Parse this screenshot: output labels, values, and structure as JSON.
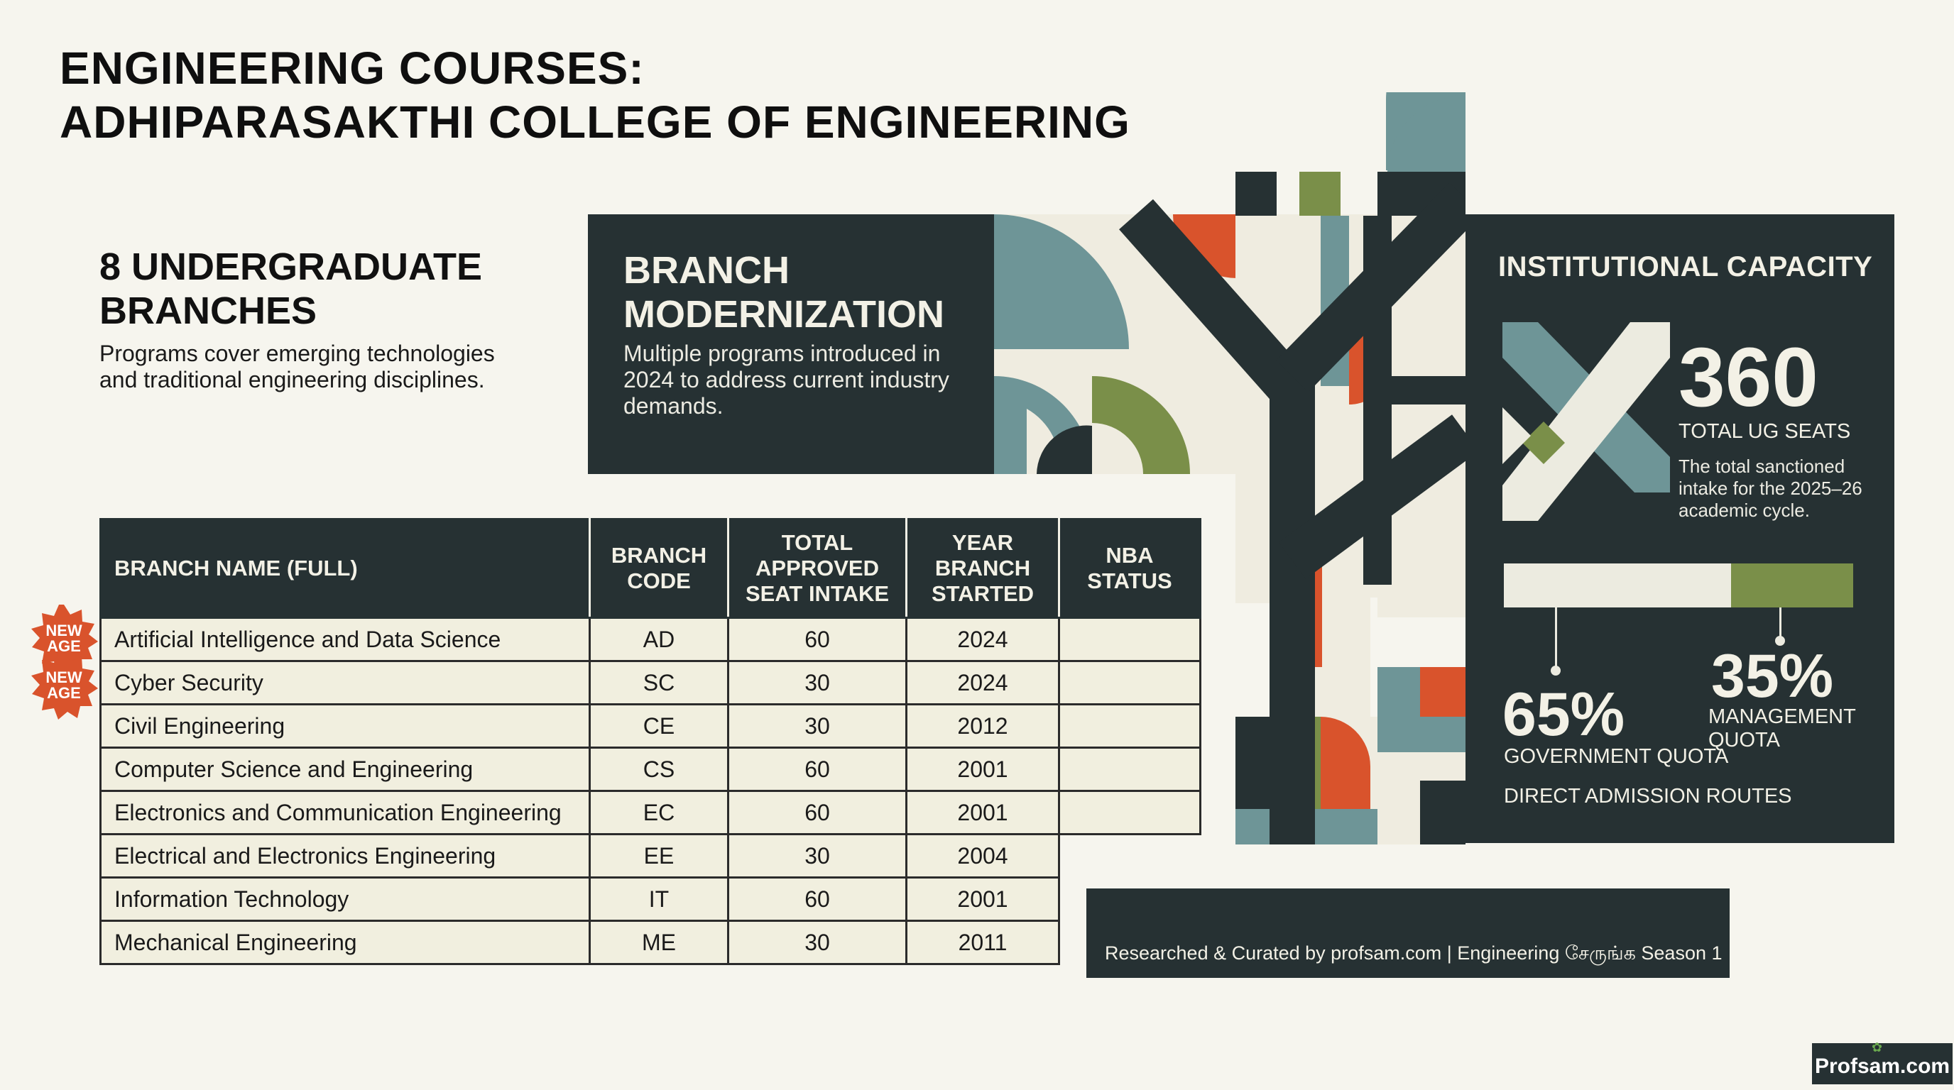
{
  "header": {
    "title_line1": "ENGINEERING COURSES:",
    "title_line2": "ADHIPARASAKTHI COLLEGE OF ENGINEERING"
  },
  "branches_summary": {
    "heading": "8 UNDERGRADUATE BRANCHES",
    "description": "Programs cover emerging technologies and traditional engineering disciplines."
  },
  "modernization": {
    "heading": "BRANCH MODERNIZATION",
    "description": "Multiple programs introduced in 2024 to address current industry demands."
  },
  "capacity": {
    "heading": "INSTITUTIONAL CAPACITY",
    "total_seats": "360",
    "total_label": "TOTAL UG SEATS",
    "total_description": "The total sanctioned intake for the 2025–26 academic cycle.",
    "government_pct": "65%",
    "government_label": "GOVERNMENT QUOTA",
    "government_fraction": 0.65,
    "management_pct": "35%",
    "management_label": "MANAGEMENT QUOTA",
    "routes_label": "DIRECT ADMISSION ROUTES",
    "colors": {
      "panel": "#263133",
      "gov_bar": "#ecebe0",
      "mgmt_bar": "#7a8f49"
    }
  },
  "table": {
    "headers": {
      "name": "BRANCH NAME (FULL)",
      "code": "BRANCH CODE",
      "intake": "TOTAL APPROVED SEAT INTAKE",
      "year": "YEAR BRANCH STARTED",
      "nba": "NBA STATUS"
    },
    "rows": [
      {
        "name": "Artificial Intelligence and Data Science",
        "code": "AD",
        "intake": "60",
        "year": "2024",
        "badge": "NEW AGE"
      },
      {
        "name": "Cyber Security",
        "code": "SC",
        "intake": "30",
        "year": "2024",
        "badge": "NEW AGE"
      },
      {
        "name": "Civil Engineering",
        "code": "CE",
        "intake": "30",
        "year": "2012"
      },
      {
        "name": "Computer Science and Engineering",
        "code": "CS",
        "intake": "60",
        "year": "2001"
      },
      {
        "name": "Electronics and Communication Engineering",
        "code": "EC",
        "intake": "60",
        "year": "2001"
      },
      {
        "name": "Electrical and Electronics Engineering",
        "code": "EE",
        "intake": "30",
        "year": "2004"
      },
      {
        "name": "Information Technology",
        "code": "IT",
        "intake": "60",
        "year": "2001"
      },
      {
        "name": "Mechanical Engineering",
        "code": "ME",
        "intake": "30",
        "year": "2011"
      }
    ]
  },
  "badges": {
    "new_age_line1": "NEW",
    "new_age_line2": "AGE",
    "color": "#d9532c"
  },
  "footer": {
    "credit": "Researched & Curated by profsam.com | Engineering சேருங்க Season 1",
    "logo_text": "Profsam.com"
  },
  "palette": {
    "dark": "#263133",
    "teal": "#6e9597",
    "orange": "#d9532c",
    "olive": "#7a8f49",
    "cream": "#f3f1e6"
  }
}
